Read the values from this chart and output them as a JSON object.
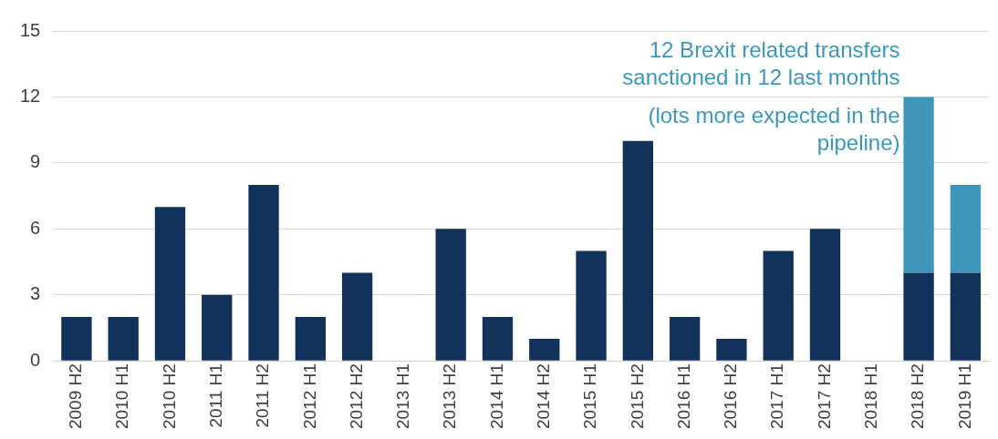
{
  "chart_data": {
    "type": "bar",
    "stacked": true,
    "categories": [
      "2009 H2",
      "2010 H1",
      "2010 H2",
      "2011 H1",
      "2011 H2",
      "2012 H1",
      "2012 H2",
      "2013 H1",
      "2013 H2",
      "2014 H1",
      "2014 H2",
      "2015 H1",
      "2015 H2",
      "2016 H1",
      "2016 H2",
      "2017 H1",
      "2017 H2",
      "2018 H1",
      "2018 H2",
      "2019 H1"
    ],
    "series": [
      {
        "color": "#12325a",
        "values": [
          2,
          2,
          7,
          3,
          8,
          2,
          4,
          0,
          6,
          2,
          1,
          5,
          10,
          2,
          1,
          5,
          6,
          0,
          4,
          4
        ]
      },
      {
        "color": "#3e97bb",
        "values": [
          0,
          0,
          0,
          0,
          0,
          0,
          0,
          0,
          0,
          0,
          0,
          0,
          0,
          0,
          0,
          0,
          0,
          0,
          8,
          4
        ]
      }
    ],
    "ylim": [
      0,
      15
    ],
    "yticks": [
      0,
      3,
      6,
      9,
      12,
      15
    ],
    "grid": "y",
    "legend": false,
    "annotations": [
      "12 Brexit related transfers sanctioned in 12 last months",
      "(lots more expected in the pipeline)"
    ]
  }
}
